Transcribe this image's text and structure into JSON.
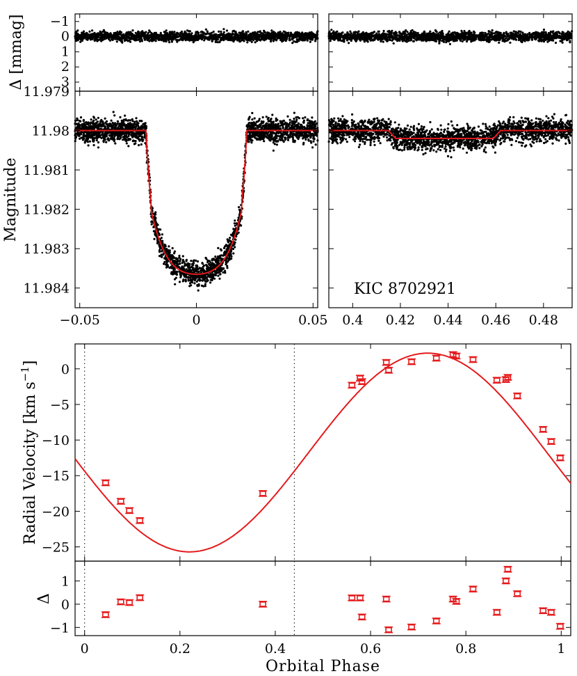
{
  "chart_data": [
    {
      "type": "scatter",
      "panel": "primary-eclipse-residuals",
      "ylabel": "Δ [mmag]",
      "xlim": [
        -0.052,
        0.052
      ],
      "ylim": [
        3.6,
        -1.5
      ],
      "yticks": [
        "-1",
        "0",
        "1",
        "2",
        "3"
      ],
      "yticks_values": [
        -1,
        0,
        1,
        2,
        3
      ]
    },
    {
      "type": "scatter",
      "panel": "secondary-eclipse-residuals",
      "xlim": [
        0.39,
        0.492
      ],
      "ylim": [
        3.6,
        -1.5
      ]
    },
    {
      "type": "line",
      "panel": "primary-eclipse",
      "ylabel": "Magnitude",
      "xlim": [
        -0.052,
        0.052
      ],
      "ylim": [
        11.9845,
        11.979
      ],
      "xticks": [
        "−0.05",
        "0",
        "0.05"
      ],
      "xticks_values": [
        -0.05,
        0,
        0.05
      ],
      "yticks": [
        "11.979",
        "11.98",
        "11.981",
        "11.982",
        "11.983",
        "11.984"
      ],
      "yticks_values": [
        11.979,
        11.98,
        11.981,
        11.982,
        11.983,
        11.984
      ],
      "model": {
        "baseline": 11.98,
        "depth_mag": 11.98365,
        "ingress_start": -0.0215,
        "ingress_end": -0.0195,
        "egress_start": 0.0195,
        "egress_end": 0.0215
      }
    },
    {
      "type": "line",
      "panel": "secondary-eclipse",
      "xlim": [
        0.39,
        0.492
      ],
      "ylim": [
        11.9845,
        11.979
      ],
      "xticks": [
        "0.4",
        "0.42",
        "0.44",
        "0.46",
        "0.48"
      ],
      "xticks_values": [
        0.4,
        0.42,
        0.44,
        0.46,
        0.48
      ],
      "annotation": "KIC 8702921",
      "model": {
        "baseline": 11.98,
        "depth_mag": 11.9802,
        "ingress_start": 0.415,
        "ingress_end": 0.418,
        "egress_start": 0.459,
        "egress_end": 0.462
      }
    },
    {
      "type": "scatter",
      "panel": "radial-velocity",
      "ylabel": "Radial Velocity [km s⁻¹]",
      "ylabel_parts": [
        "Radial Velocity [km s",
        "−1",
        "]"
      ],
      "xlim": [
        -0.02,
        1.02
      ],
      "ylim": [
        -27,
        3.5
      ],
      "yticks": [
        "0",
        "-5",
        "-10",
        "-15",
        "-20",
        "-25"
      ],
      "yticks_values": [
        0,
        -5,
        -10,
        -15,
        -20,
        -25
      ],
      "vlines": [
        0,
        0.44
      ],
      "model": {
        "gamma": -11.75,
        "K": 13.95,
        "eccentricity": 0,
        "phase_of_minimum": 0.22
      },
      "x": [
        0.044,
        0.076,
        0.094,
        0.116,
        0.374,
        0.561,
        0.578,
        0.582,
        0.633,
        0.638,
        0.686,
        0.738,
        0.773,
        0.78,
        0.815,
        0.865,
        0.884,
        0.888,
        0.908,
        0.962,
        0.979,
        0.998
      ],
      "y": [
        -16.0,
        -18.6,
        -19.9,
        -21.3,
        -17.5,
        -2.3,
        -1.3,
        -1.8,
        0.9,
        -0.2,
        1.0,
        1.5,
        2.0,
        1.8,
        1.3,
        -1.6,
        -1.5,
        -1.2,
        -3.8,
        -8.5,
        -10.2,
        -12.5
      ]
    },
    {
      "type": "scatter",
      "panel": "rv-residuals",
      "ylabel": "Δ",
      "xlabel": "Orbital Phase",
      "xlim": [
        -0.02,
        1.02
      ],
      "ylim": [
        -1.35,
        1.85
      ],
      "xticks": [
        "0",
        "0.2",
        "0.4",
        "0.6",
        "0.8",
        "1"
      ],
      "xticks_values": [
        0,
        0.2,
        0.4,
        0.6,
        0.8,
        1
      ],
      "yticks": [
        "1",
        "0",
        "-1"
      ],
      "yticks_values": [
        1,
        0,
        -1
      ],
      "vlines": [
        0,
        0.44
      ],
      "x": [
        0.044,
        0.076,
        0.094,
        0.116,
        0.374,
        0.561,
        0.578,
        0.582,
        0.633,
        0.638,
        0.686,
        0.738,
        0.773,
        0.78,
        0.815,
        0.865,
        0.884,
        0.888,
        0.908,
        0.962,
        0.979,
        0.998
      ],
      "y": [
        -0.45,
        0.1,
        0.07,
        0.28,
        0.0,
        0.27,
        0.27,
        -0.55,
        0.22,
        -1.1,
        -0.98,
        -0.72,
        0.22,
        0.12,
        0.65,
        -0.35,
        1.0,
        1.5,
        0.45,
        -0.28,
        -0.35,
        -0.95
      ]
    }
  ]
}
